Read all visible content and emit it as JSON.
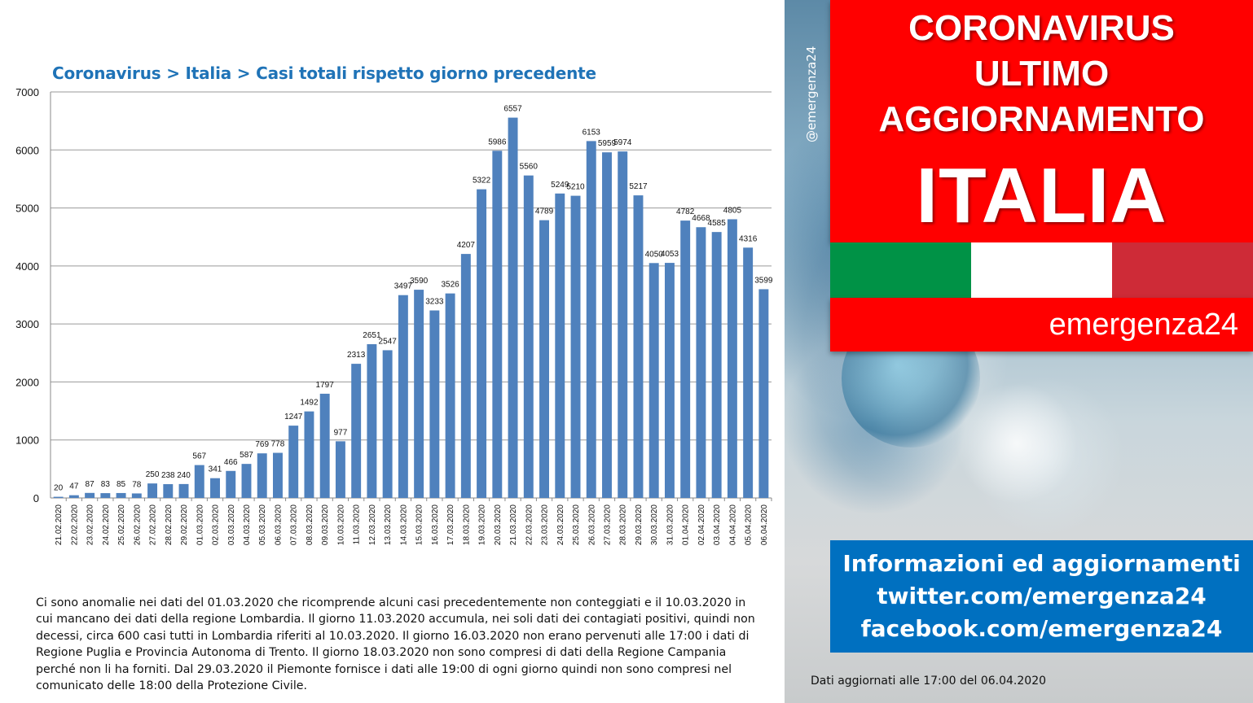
{
  "chart_title": "Coronavirus > Italia > Casi totali rispetto giorno precedente",
  "chart_data": {
    "type": "bar",
    "title": "Coronavirus > Italia > Casi totali rispetto giorno precedente",
    "xlabel": "",
    "ylabel": "",
    "ylim": [
      0,
      7000
    ],
    "yticks": [
      0,
      1000,
      2000,
      3000,
      4000,
      5000,
      6000,
      7000
    ],
    "grid": true,
    "bar_color": "#4f81bd",
    "categories": [
      "21.02.2020",
      "22.02.2020",
      "23.02.2020",
      "24.02.2020",
      "25.02.2020",
      "26.02.2020",
      "27.02.2020",
      "28.02.2020",
      "29.02.2020",
      "01.03.2020",
      "02.03.2020",
      "03.03.2020",
      "04.03.2020",
      "05.03.2020",
      "06.03.2020",
      "07.03.2020",
      "08.03.2020",
      "09.03.2020",
      "10.03.2020",
      "11.03.2020",
      "12.03.2020",
      "13.03.2020",
      "14.03.2020",
      "15.03.2020",
      "16.03.2020",
      "17.03.2020",
      "18.03.2020",
      "19.03.2020",
      "20.03.2020",
      "21.03.2020",
      "22.03.2020",
      "23.03.2020",
      "24.03.2020",
      "25.03.2020",
      "26.03.2020",
      "27.03.2020",
      "28.03.2020",
      "29.03.2020",
      "30.03.2020",
      "31.03.2020",
      "01.04.2020",
      "02.04.2020",
      "03.04.2020",
      "04.04.2020",
      "05.04.2020",
      "06.04.2020"
    ],
    "values": [
      20,
      47,
      87,
      83,
      85,
      78,
      250,
      238,
      240,
      567,
      341,
      466,
      587,
      769,
      778,
      1247,
      1492,
      1797,
      977,
      2313,
      2651,
      2547,
      3497,
      3590,
      3233,
      3526,
      4207,
      5322,
      5986,
      6557,
      5560,
      4789,
      5249,
      5210,
      6153,
      5959,
      5974,
      5217,
      4050,
      4053,
      4782,
      4668,
      4585,
      4805,
      4316,
      3599
    ]
  },
  "note": "Ci sono anomalie nei dati del 01.03.2020 che ricomprende alcuni casi precedentemente  non conteggiati e il 10.03.2020 in cui mancano dei dati della regione Lombardia. Il giorno 11.03.2020  accumula, nei soli dati dei contagiati positivi, quindi non decessi, circa 600 casi tutti in Lombardia riferiti al 10.03.2020. Il giorno 16.03.2020 non erano pervenuti alle  17:00 i dati di Regione Puglia e Provincia Autonoma di Trento. Il giorno 18.03.2020 non sono compresi di dati della Regione Campania perché non li ha forniti. Dal 29.03.2020 il Piemonte fornisce i dati alle  19:00 di ogni giorno quindi non sono compresi nel comunicato delle 18:00 della Protezione Civile.",
  "header": {
    "line1": "CORONAVIRUS",
    "line2": "ULTIMO",
    "line3": "AGGIORNAMENTO",
    "line4": "ITALIA"
  },
  "flag_colors": [
    "#009246",
    "#ffffff",
    "#ce2b37"
  ],
  "brand": "emergenza24",
  "handle": "@emergenza24",
  "info": {
    "line1": "Informazioni ed aggiornamenti",
    "line2": "twitter.com/emergenza24",
    "line3": "facebook.com/emergenza24"
  },
  "updated": "Dati aggiornati alle 17:00 del 06.04.2020"
}
